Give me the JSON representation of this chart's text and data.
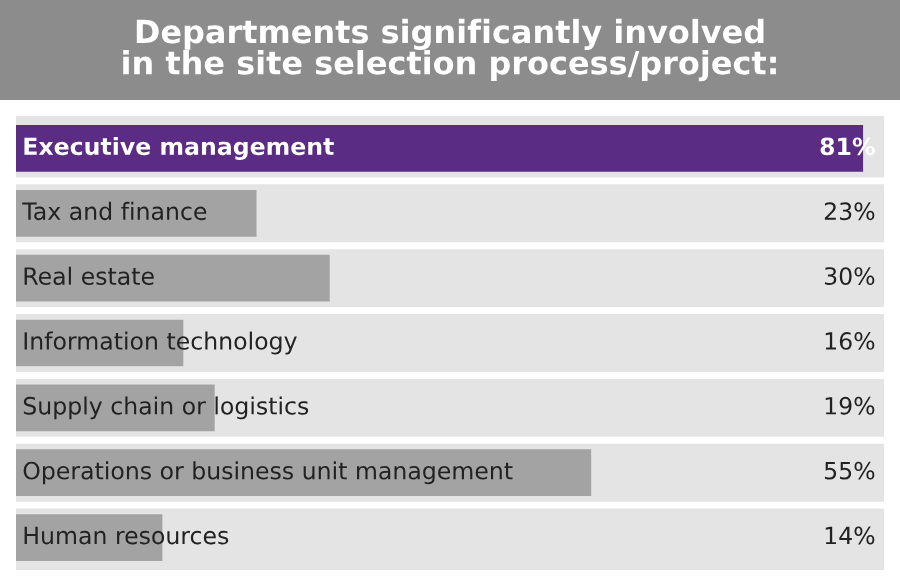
{
  "chart_data": {
    "type": "bar",
    "orientation": "horizontal",
    "title": "Departments significantly involved\nin the site selection process/project:",
    "categories": [
      "Executive management",
      "Tax and finance",
      "Real estate",
      "Information technology",
      "Supply chain or logistics",
      "Operations or business unit management",
      "Human resources"
    ],
    "values": [
      81,
      23,
      30,
      16,
      19,
      55,
      14
    ],
    "value_labels": [
      "81%",
      "23%",
      "30%",
      "16%",
      "19%",
      "55%",
      "14%"
    ],
    "colors": [
      "#5b2c83",
      "#a3a3a3",
      "#a3a3a3",
      "#a3a3a3",
      "#a3a3a3",
      "#a3a3a3",
      "#a3a3a3"
    ],
    "xlim": [
      0,
      83
    ]
  }
}
